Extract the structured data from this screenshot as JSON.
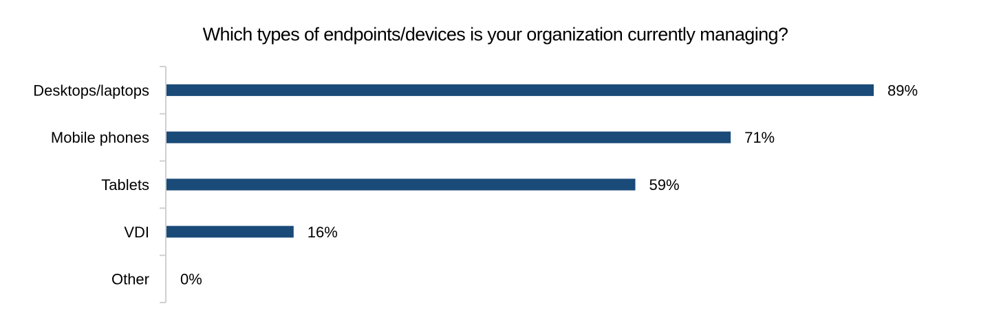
{
  "chart_data": {
    "type": "bar",
    "orientation": "horizontal",
    "title": "Which types of endpoints/devices is your organization currently managing?",
    "xlabel": "",
    "ylabel": "",
    "categories": [
      "Desktops/laptops",
      "Mobile phones",
      "Tablets",
      "VDI",
      "Other"
    ],
    "values": [
      89,
      71,
      59,
      16,
      0
    ],
    "value_labels": [
      "89%",
      "71%",
      "59%",
      "16%",
      "0%"
    ],
    "unit": "%",
    "xlim": [
      0,
      89
    ],
    "grid": false,
    "legend": "none",
    "bar_color": "#1a4a78",
    "axis_color": "#d0d0d0"
  }
}
